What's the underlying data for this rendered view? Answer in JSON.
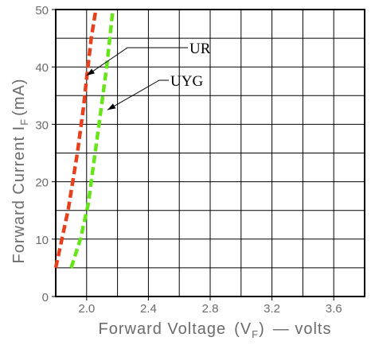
{
  "chart_data": {
    "type": "line",
    "xlabel": "Forward Voltage",
    "xlabel_var": "V",
    "xlabel_sub": "F",
    "xlabel_unit": "— volts",
    "ylabel": "Forward Current I",
    "ylabel_sub": "F",
    "ylabel_unit": "(mA)",
    "xlim": [
      1.8,
      3.8
    ],
    "ylim": [
      0,
      50
    ],
    "xticks": [
      2.0,
      2.4,
      2.8,
      3.2,
      3.6
    ],
    "xtick_labels": [
      "2.0",
      "2.4",
      "2.8",
      "3.2",
      "3.6"
    ],
    "yticks": [
      0,
      10,
      20,
      30,
      40,
      50
    ],
    "ytick_labels": [
      "0",
      "10",
      "20",
      "30",
      "40",
      "50"
    ],
    "grid": {
      "x_step": 0.2,
      "y_step": 5
    },
    "series": [
      {
        "name": "UR",
        "color": "#e8401c",
        "x": [
          1.8,
          1.88,
          1.94,
          1.98,
          2.0,
          2.03,
          2.06
        ],
        "y": [
          5,
          15,
          25,
          33,
          38,
          45,
          50
        ]
      },
      {
        "name": "UYG",
        "color": "#66e619",
        "x": [
          1.9,
          1.96,
          2.01,
          2.05,
          2.09,
          2.13,
          2.17
        ],
        "y": [
          5,
          10,
          16,
          24,
          32,
          40,
          50
        ]
      }
    ],
    "annotations": [
      {
        "text": "UR",
        "series": "UR",
        "at": [
          2.0,
          38.5
        ]
      },
      {
        "text": "UYG",
        "series": "UYG",
        "at": [
          2.135,
          32.5
        ]
      }
    ]
  }
}
